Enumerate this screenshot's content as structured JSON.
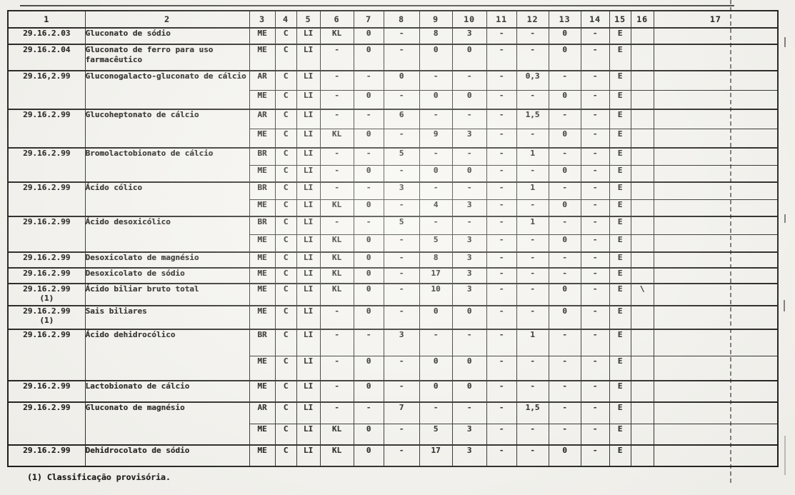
{
  "table": {
    "headers": [
      "1",
      "2",
      "3",
      "4",
      "5",
      "6",
      "7",
      "8",
      "9",
      "10",
      "11",
      "12",
      "13",
      "14",
      "15",
      "16",
      "17"
    ],
    "rows": [
      {
        "code": "29.16.2.03",
        "name": "Gluconato de sódio",
        "subrows": [
          [
            "ME",
            "C",
            "LI",
            "KL",
            "0",
            "-",
            "8",
            "3",
            "-",
            "-",
            "0",
            "-",
            "E",
            "",
            ""
          ]
        ]
      },
      {
        "code": "29.16.2.04",
        "name": "Gluconato de ferro para uso farmacêutico",
        "subrows": [
          [
            "ME",
            "C",
            "LI",
            "-",
            "0",
            "-",
            "0",
            "0",
            "-",
            "-",
            "0",
            "-",
            "E",
            "",
            ""
          ]
        ]
      },
      {
        "code": "29.16,2.99",
        "name": "Gluconogalacto-gluconato de cálcio",
        "subrows": [
          [
            "AR",
            "C",
            "LI",
            "-",
            "-",
            "0",
            "-",
            "-",
            "-",
            "0,3",
            "-",
            "-",
            "E",
            "",
            ""
          ],
          [
            "ME",
            "C",
            "LI",
            "-",
            "0",
            "-",
            "0",
            "0",
            "-",
            "-",
            "0",
            "-",
            "E",
            "",
            ""
          ]
        ]
      },
      {
        "code": "29.16.2.99",
        "name": "Glucoheptonato de cálcio",
        "subrows": [
          [
            "AR",
            "C",
            "LI",
            "-",
            "-",
            "6",
            "-",
            "-",
            "-",
            "1,5",
            "-",
            "-",
            "E",
            "",
            ""
          ],
          [
            "ME",
            "C",
            "LI",
            "KL",
            "0",
            "-",
            "9",
            "3",
            "-",
            "-",
            "0",
            "-",
            "E",
            "",
            ""
          ]
        ]
      },
      {
        "code": "29.16.2.99",
        "name": "Bromolactobionato de cálcio",
        "subrows": [
          [
            "BR",
            "C",
            "LI",
            "-",
            "-",
            "5",
            "-",
            "-",
            "-",
            "1",
            "-",
            "-",
            "E",
            "",
            ""
          ],
          [
            "ME",
            "C",
            "LI",
            "-",
            "0",
            "-",
            "0",
            "0",
            "-",
            "-",
            "0",
            "-",
            "E",
            "",
            ""
          ]
        ]
      },
      {
        "code": "29.16.2.99",
        "name": "Ácido cólico",
        "subrows": [
          [
            "BR",
            "C",
            "LI",
            "-",
            "-",
            "3",
            "-",
            "-",
            "-",
            "1",
            "-",
            "-",
            "E",
            "",
            ""
          ],
          [
            "ME",
            "C",
            "LI",
            "KL",
            "0",
            "-",
            "4",
            "3",
            "-",
            "-",
            "0",
            "-",
            "E",
            "",
            ""
          ]
        ]
      },
      {
        "code": "29.16.2.99",
        "name": "Ácido desoxicólico",
        "subrows": [
          [
            "BR",
            "C",
            "LI",
            "-",
            "-",
            "5",
            "-",
            "-",
            "-",
            "1",
            "-",
            "-",
            "E",
            "",
            ""
          ],
          [
            "ME",
            "C",
            "LI",
            "KL",
            "0",
            "-",
            "5",
            "3",
            "-",
            "-",
            "0",
            "-",
            "E",
            "",
            ""
          ]
        ]
      },
      {
        "code": "29.16.2.99",
        "name": "Desoxicolato de magnésio",
        "subrows": [
          [
            "ME",
            "C",
            "LI",
            "KL",
            "0",
            "-",
            "8",
            "3",
            "-",
            "-",
            "-",
            "-",
            "E",
            "",
            ""
          ]
        ]
      },
      {
        "code": "29.16.2.99",
        "name": "Desoxicolato de sódio",
        "subrows": [
          [
            "ME",
            "C",
            "LI",
            "KL",
            "0",
            "-",
            "17",
            "3",
            "-",
            "-",
            "-",
            "-",
            "E",
            "",
            ""
          ]
        ]
      },
      {
        "code": "29.16.2.99",
        "code_note": "(1)",
        "name": "Ácido biliar bruto total",
        "subrows": [
          [
            "ME",
            "C",
            "LI",
            "KL",
            "0",
            "-",
            "10",
            "3",
            "-",
            "-",
            "0",
            "-",
            "E",
            "\\",
            ""
          ]
        ]
      },
      {
        "code": "29.16.2.99",
        "code_note": "(1)",
        "name": "Sais biliares",
        "subrows": [
          [
            "ME",
            "C",
            "LI",
            "-",
            "0",
            "-",
            "0",
            "0",
            "-",
            "-",
            "0",
            "-",
            "E",
            "",
            ""
          ]
        ]
      },
      {
        "code": "29.16.2.99",
        "name": "Ácido dehidrocólico",
        "subrows": [
          [
            "BR",
            "C",
            "LI",
            "-",
            "-",
            "3",
            "-",
            "-",
            "-",
            "1",
            "-",
            "-",
            "E",
            "",
            ""
          ],
          [
            "ME",
            "C",
            "LI",
            "-",
            "0",
            "-",
            "0",
            "0",
            "-",
            "-",
            "-",
            "-",
            "E",
            "",
            ""
          ]
        ]
      },
      {
        "code": "29.16.2.99",
        "name": "Lactobionato de cálcio",
        "subrows": [
          [
            "ME",
            "C",
            "LI",
            "-",
            "0",
            "-",
            "0",
            "0",
            "-",
            "-",
            "-",
            "-",
            "E",
            "",
            ""
          ]
        ]
      },
      {
        "code": "29.16.2.99",
        "name": "Gluconato de magnésio",
        "subrows": [
          [
            "AR",
            "C",
            "LI",
            "-",
            "-",
            "7",
            "-",
            "-",
            "-",
            "1,5",
            "-",
            "-",
            "E",
            "",
            ""
          ],
          [
            "ME",
            "C",
            "LI",
            "KL",
            "0",
            "-",
            "5",
            "3",
            "-",
            "-",
            "-",
            "-",
            "E",
            "",
            ""
          ]
        ]
      },
      {
        "code": "29.16.2.99",
        "name": "Dehidrocolato de sódio",
        "subrows": [
          [
            "ME",
            "C",
            "LI",
            "KL",
            "0",
            "-",
            "17",
            "3",
            "-",
            "-",
            "0",
            "-",
            "E",
            "",
            ""
          ]
        ]
      }
    ]
  },
  "footnote": "(1) Classificação provisória."
}
